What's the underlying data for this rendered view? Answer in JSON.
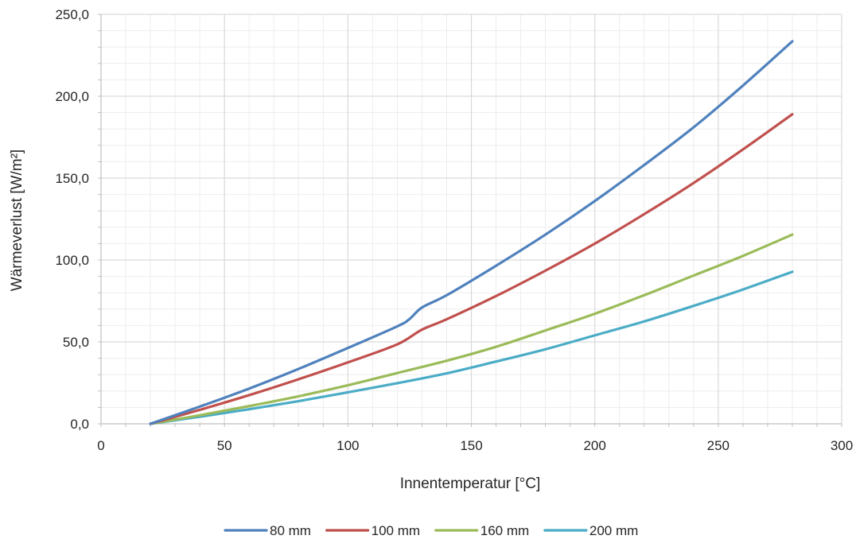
{
  "chart_data": {
    "type": "line",
    "title": "",
    "xlabel": "Innentemperatur [°C]",
    "ylabel": "Wärmeverlust [W/m²]",
    "xlim": [
      0,
      300
    ],
    "ylim": [
      0,
      250
    ],
    "xticks": [
      0,
      50,
      100,
      150,
      200,
      250,
      300
    ],
    "xtick_labels": [
      "0",
      "50",
      "100",
      "150",
      "200",
      "250",
      "300"
    ],
    "yticks": [
      0,
      50,
      100,
      150,
      200,
      250
    ],
    "ytick_labels": [
      "0,0",
      "50,0",
      "100,0",
      "150,0",
      "200,0",
      "250,0"
    ],
    "grid": true,
    "legend_position": "bottom",
    "series": [
      {
        "name": "80 mm",
        "color": "#4F81BD",
        "x": [
          20,
          40,
          60,
          80,
          100,
          120,
          125,
          130,
          140,
          160,
          180,
          200,
          220,
          240,
          260,
          280
        ],
        "y": [
          0,
          10.5,
          21.5,
          33.5,
          46.3,
          59.5,
          64,
          71,
          78.5,
          96.5,
          115.5,
          136,
          158,
          181,
          206.5,
          233.5
        ]
      },
      {
        "name": "100 mm",
        "color": "#C0504D",
        "x": [
          20,
          40,
          60,
          80,
          100,
          120,
          130,
          140,
          160,
          180,
          200,
          220,
          240,
          260,
          280
        ],
        "y": [
          0,
          8.5,
          17.5,
          27.2,
          37.5,
          48.5,
          57.5,
          63.8,
          78,
          93.5,
          110,
          128,
          147,
          167.5,
          189
        ]
      },
      {
        "name": "160 mm",
        "color": "#9BBB59",
        "x": [
          20,
          40,
          60,
          80,
          100,
          120,
          140,
          160,
          180,
          200,
          220,
          240,
          260,
          280
        ],
        "y": [
          0,
          5.2,
          10.8,
          16.8,
          23.5,
          31,
          38.5,
          47,
          57,
          67.2,
          78.5,
          90.5,
          102.5,
          115.5
        ]
      },
      {
        "name": "200 mm",
        "color": "#4BACC6",
        "x": [
          20,
          40,
          60,
          80,
          100,
          120,
          140,
          160,
          180,
          200,
          220,
          240,
          260,
          280
        ],
        "y": [
          0,
          4.3,
          8.9,
          13.8,
          19.2,
          24.8,
          30.8,
          38,
          45.5,
          54,
          62.5,
          72,
          82,
          92.8
        ]
      }
    ]
  }
}
